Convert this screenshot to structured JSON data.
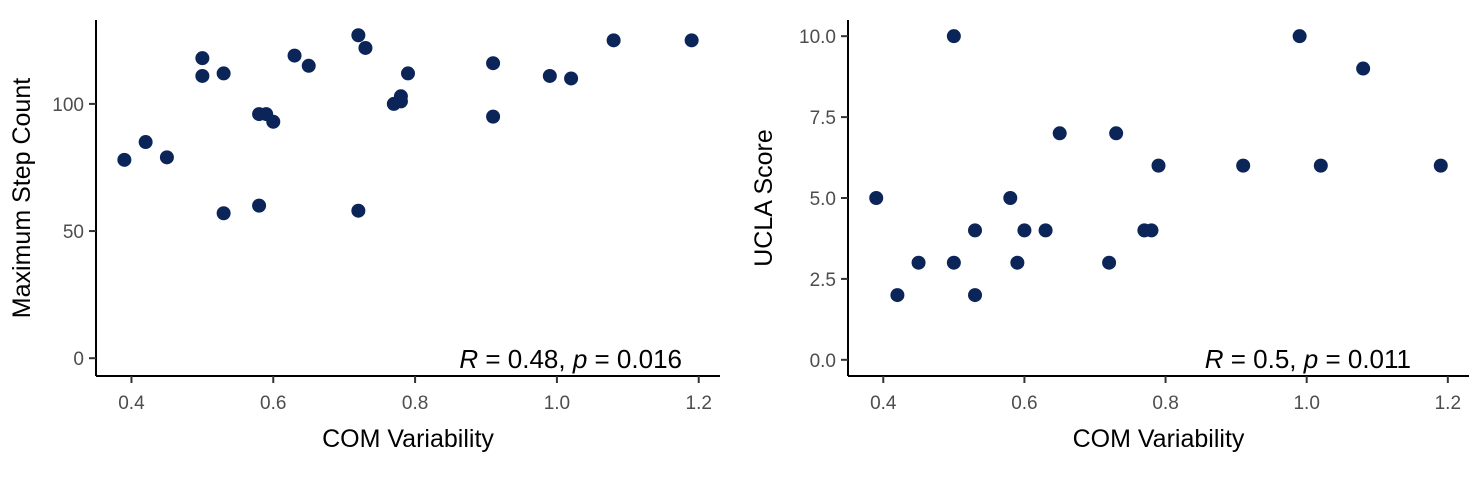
{
  "chart_data": [
    {
      "type": "scatter",
      "title": "",
      "xlabel": "COM Variability",
      "ylabel": "Maximum Step Count",
      "xlim": [
        0.35,
        1.23
      ],
      "ylim": [
        -7,
        133
      ],
      "xticks": [
        0.4,
        0.6,
        0.8,
        1.0,
        1.2
      ],
      "xtick_labels": [
        "0.4",
        "0.6",
        "0.8",
        "1.0",
        "1.2"
      ],
      "yticks": [
        0,
        50,
        100
      ],
      "ytick_labels": [
        "0",
        "50",
        "100"
      ],
      "grid": false,
      "point_color": "#0b2559",
      "annotation": {
        "r_symbol": "R",
        "r_value": " = 0.48, ",
        "p_symbol": "p",
        "p_value": " = 0.016"
      },
      "points": [
        {
          "x": 0.39,
          "y": 78
        },
        {
          "x": 0.42,
          "y": 85
        },
        {
          "x": 0.45,
          "y": 79
        },
        {
          "x": 0.5,
          "y": 118
        },
        {
          "x": 0.5,
          "y": 111
        },
        {
          "x": 0.53,
          "y": 112
        },
        {
          "x": 0.53,
          "y": 57
        },
        {
          "x": 0.58,
          "y": 96
        },
        {
          "x": 0.58,
          "y": 60
        },
        {
          "x": 0.59,
          "y": 96
        },
        {
          "x": 0.6,
          "y": 93
        },
        {
          "x": 0.63,
          "y": 119
        },
        {
          "x": 0.65,
          "y": 115
        },
        {
          "x": 0.72,
          "y": 127
        },
        {
          "x": 0.72,
          "y": 58
        },
        {
          "x": 0.73,
          "y": 122
        },
        {
          "x": 0.77,
          "y": 100
        },
        {
          "x": 0.78,
          "y": 101
        },
        {
          "x": 0.78,
          "y": 103
        },
        {
          "x": 0.79,
          "y": 112
        },
        {
          "x": 0.91,
          "y": 116
        },
        {
          "x": 0.91,
          "y": 95
        },
        {
          "x": 0.99,
          "y": 111
        },
        {
          "x": 1.02,
          "y": 110
        },
        {
          "x": 1.08,
          "y": 125
        },
        {
          "x": 1.19,
          "y": 125
        }
      ]
    },
    {
      "type": "scatter",
      "title": "",
      "xlabel": "COM Variability",
      "ylabel": "UCLA Score",
      "xlim": [
        0.35,
        1.23
      ],
      "ylim": [
        -0.5,
        10.5
      ],
      "xticks": [
        0.4,
        0.6,
        0.8,
        1.0,
        1.2
      ],
      "xtick_labels": [
        "0.4",
        "0.6",
        "0.8",
        "1.0",
        "1.2"
      ],
      "yticks": [
        0.0,
        2.5,
        5.0,
        7.5,
        10.0
      ],
      "ytick_labels": [
        "0.0",
        "2.5",
        "5.0",
        "7.5",
        "10.0"
      ],
      "grid": false,
      "point_color": "#0b2559",
      "annotation": {
        "r_symbol": "R",
        "r_value": " = 0.5, ",
        "p_symbol": "p",
        "p_value": " = 0.011"
      },
      "points": [
        {
          "x": 0.39,
          "y": 5
        },
        {
          "x": 0.42,
          "y": 2
        },
        {
          "x": 0.45,
          "y": 3
        },
        {
          "x": 0.5,
          "y": 10
        },
        {
          "x": 0.5,
          "y": 3
        },
        {
          "x": 0.53,
          "y": 4
        },
        {
          "x": 0.53,
          "y": 2
        },
        {
          "x": 0.58,
          "y": 5
        },
        {
          "x": 0.59,
          "y": 3
        },
        {
          "x": 0.6,
          "y": 4
        },
        {
          "x": 0.63,
          "y": 4
        },
        {
          "x": 0.65,
          "y": 7
        },
        {
          "x": 0.72,
          "y": 3
        },
        {
          "x": 0.73,
          "y": 7
        },
        {
          "x": 0.77,
          "y": 4
        },
        {
          "x": 0.78,
          "y": 4
        },
        {
          "x": 0.79,
          "y": 6
        },
        {
          "x": 0.91,
          "y": 6
        },
        {
          "x": 0.99,
          "y": 10
        },
        {
          "x": 1.02,
          "y": 6
        },
        {
          "x": 1.08,
          "y": 9
        },
        {
          "x": 1.19,
          "y": 6
        }
      ]
    }
  ]
}
